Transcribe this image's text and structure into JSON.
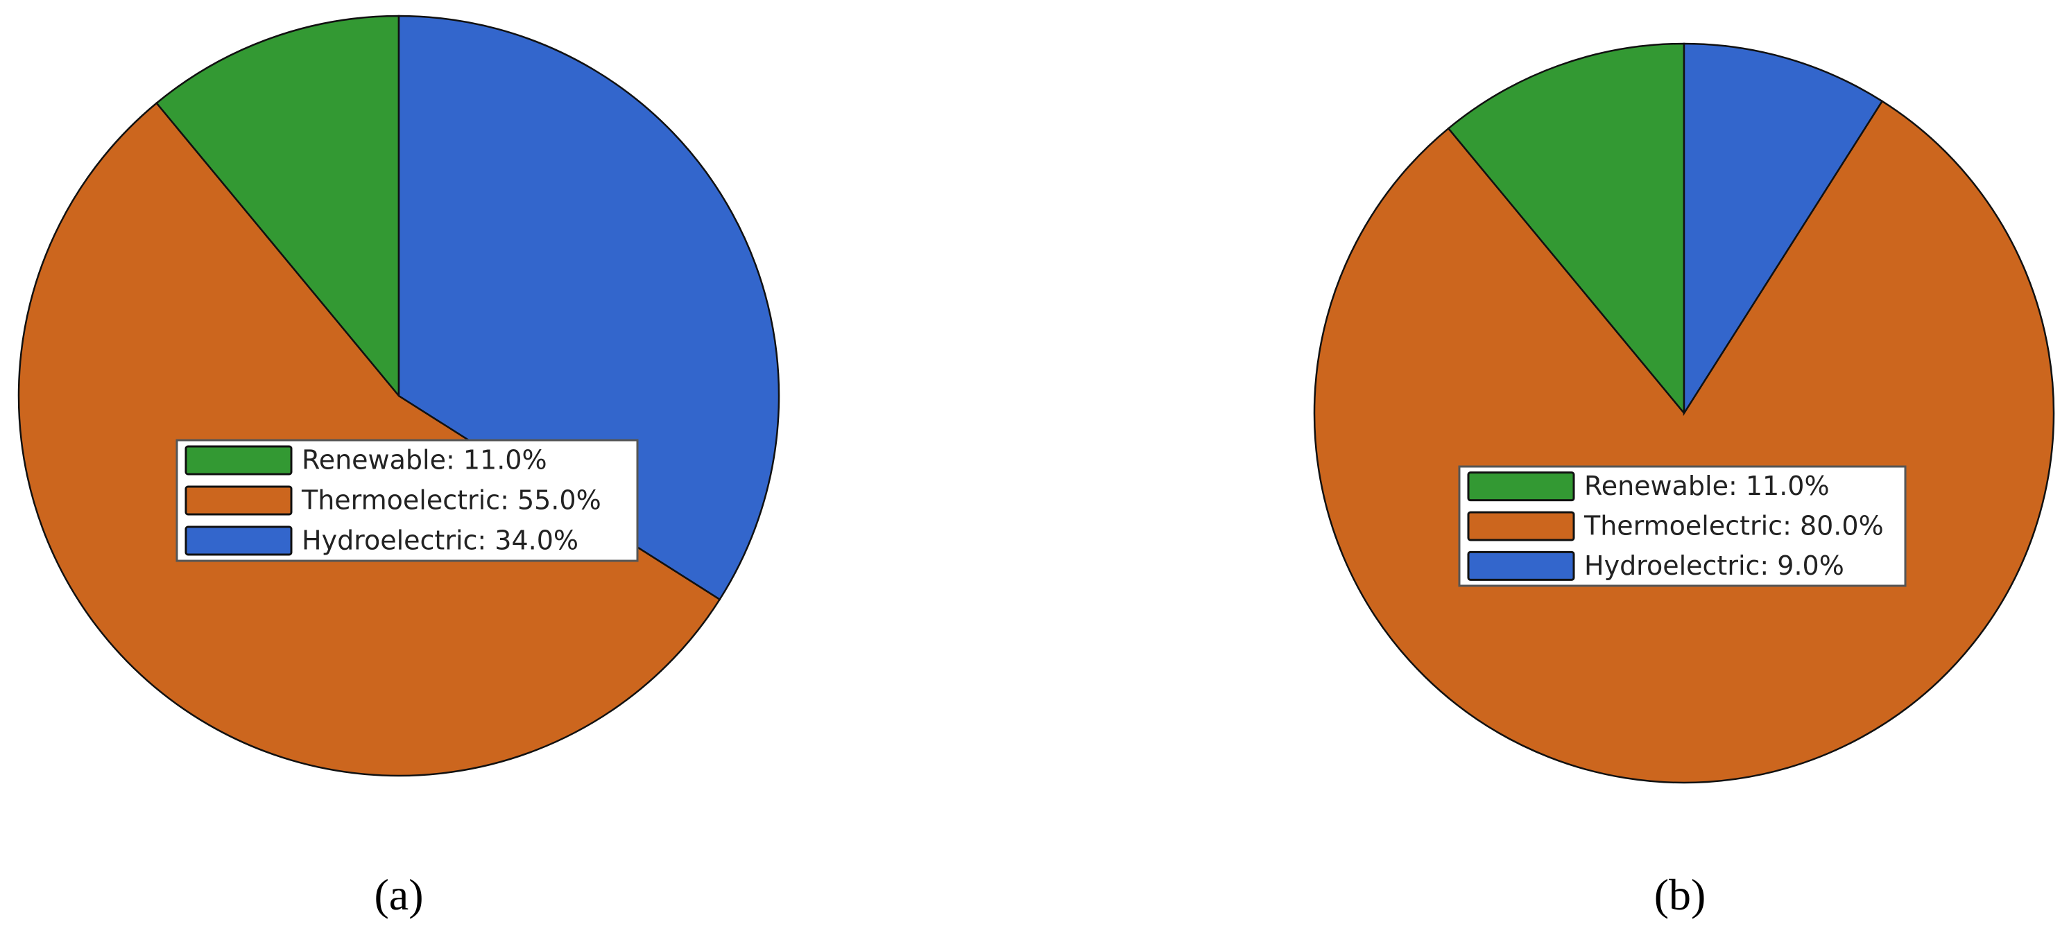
{
  "chart_data": [
    {
      "type": "pie",
      "caption": "(a)",
      "labels": [
        "Renewable: 11.0%",
        "Thermoelectric: 55.0%",
        "Hydroelectric: 34.0%"
      ],
      "values": [
        11,
        55,
        34
      ],
      "colors": [
        "#339933",
        "#cc661e",
        "#3366cc"
      ]
    },
    {
      "type": "pie",
      "caption": "(b)",
      "labels": [
        "Renewable: 11.0%",
        "Thermoelectric: 80.0%",
        "Hydroelectric: 9.0%"
      ],
      "values": [
        11,
        80,
        9
      ],
      "colors": [
        "#339933",
        "#cc661e",
        "#3366cc"
      ]
    }
  ]
}
